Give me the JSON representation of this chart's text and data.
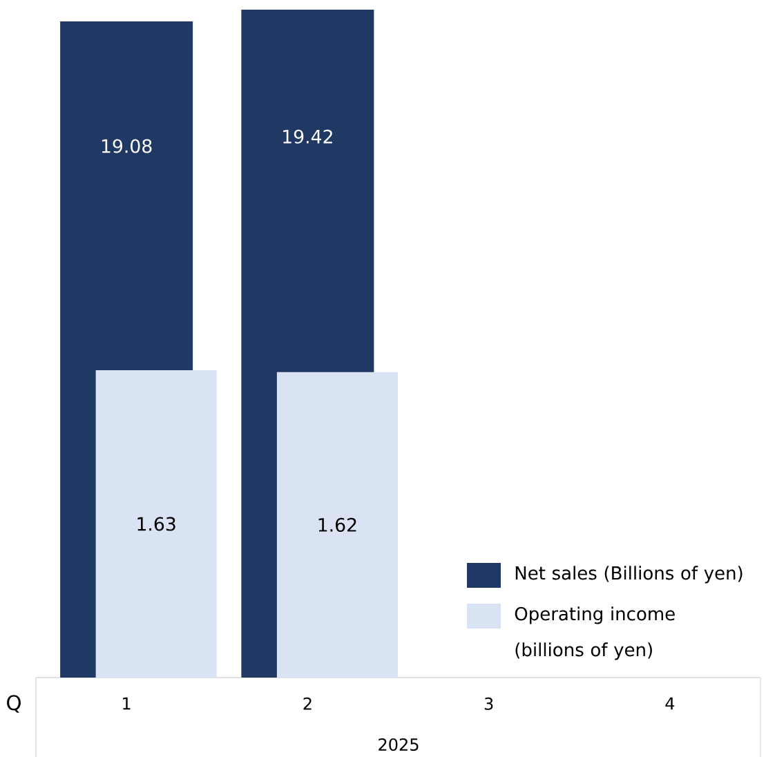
{
  "chart_data": {
    "type": "bar",
    "xlabel": "Q",
    "categories": [
      "1",
      "2",
      "3",
      "4"
    ],
    "series": [
      {
        "name": "Net sales (Billions of yen)",
        "color": "#203864",
        "values": [
          19.08,
          19.42,
          null,
          null
        ]
      },
      {
        "name": "Operating income (billions of yen)",
        "color": "#dae3f3",
        "axis": "y2",
        "values": [
          1.63,
          1.62,
          null,
          null
        ]
      }
    ],
    "data_labels": true,
    "tick_labels": "x",
    "grid": false,
    "legend": "bottom right",
    "annotations": [
      "2025"
    ]
  }
}
